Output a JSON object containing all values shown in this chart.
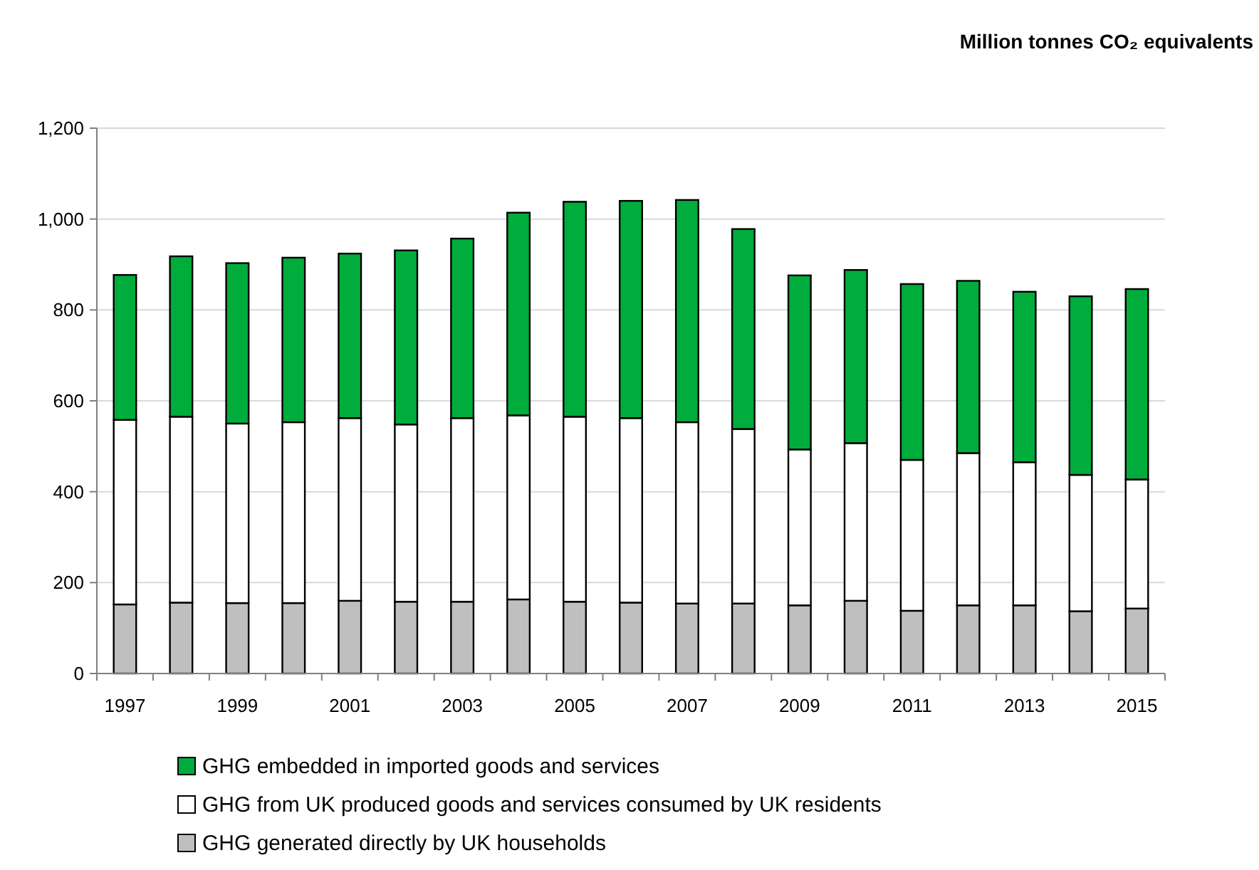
{
  "chart_data": {
    "type": "bar",
    "subtitle": "Million tonnes CO₂ equivalents",
    "stacked": true,
    "grid": "y",
    "legend": "bottom",
    "categories": [
      "1997",
      null,
      "1999",
      null,
      "2001",
      null,
      "2003",
      null,
      "2005",
      null,
      "2007",
      null,
      "2009",
      null,
      "2011",
      null,
      "2013",
      null,
      "2015"
    ],
    "ylim": [
      0,
      1200
    ],
    "yticks": [
      0,
      {
        "value": 200,
        "label": "200"
      },
      {
        "value": 400,
        "label": "400"
      },
      {
        "value": 600,
        "label": "600"
      },
      {
        "value": 800,
        "label": "800"
      },
      {
        "value": 1000,
        "label": "1,000"
      },
      {
        "value": 1200,
        "label": "1,200"
      }
    ],
    "series": [
      {
        "name": "GHG generated directly by UK households",
        "color": "#bfbfbf",
        "values": [
          152,
          156,
          155,
          155,
          160,
          158,
          158,
          163,
          158,
          156,
          154,
          154,
          150,
          160,
          138,
          150,
          150,
          137,
          143
        ]
      },
      {
        "name": "GHG from UK produced goods and services consumed by UK residents",
        "color": "#ffffff",
        "values": [
          406,
          409,
          395,
          398,
          402,
          390,
          404,
          405,
          407,
          406,
          399,
          384,
          343,
          347,
          332,
          335,
          315,
          300,
          284
        ]
      },
      {
        "name": "GHG embedded in imported goods and services",
        "color": "#00ac3c",
        "values": [
          319,
          353,
          353,
          362,
          362,
          383,
          395,
          446,
          473,
          478,
          489,
          440,
          383,
          381,
          387,
          379,
          375,
          393,
          419
        ]
      }
    ]
  }
}
